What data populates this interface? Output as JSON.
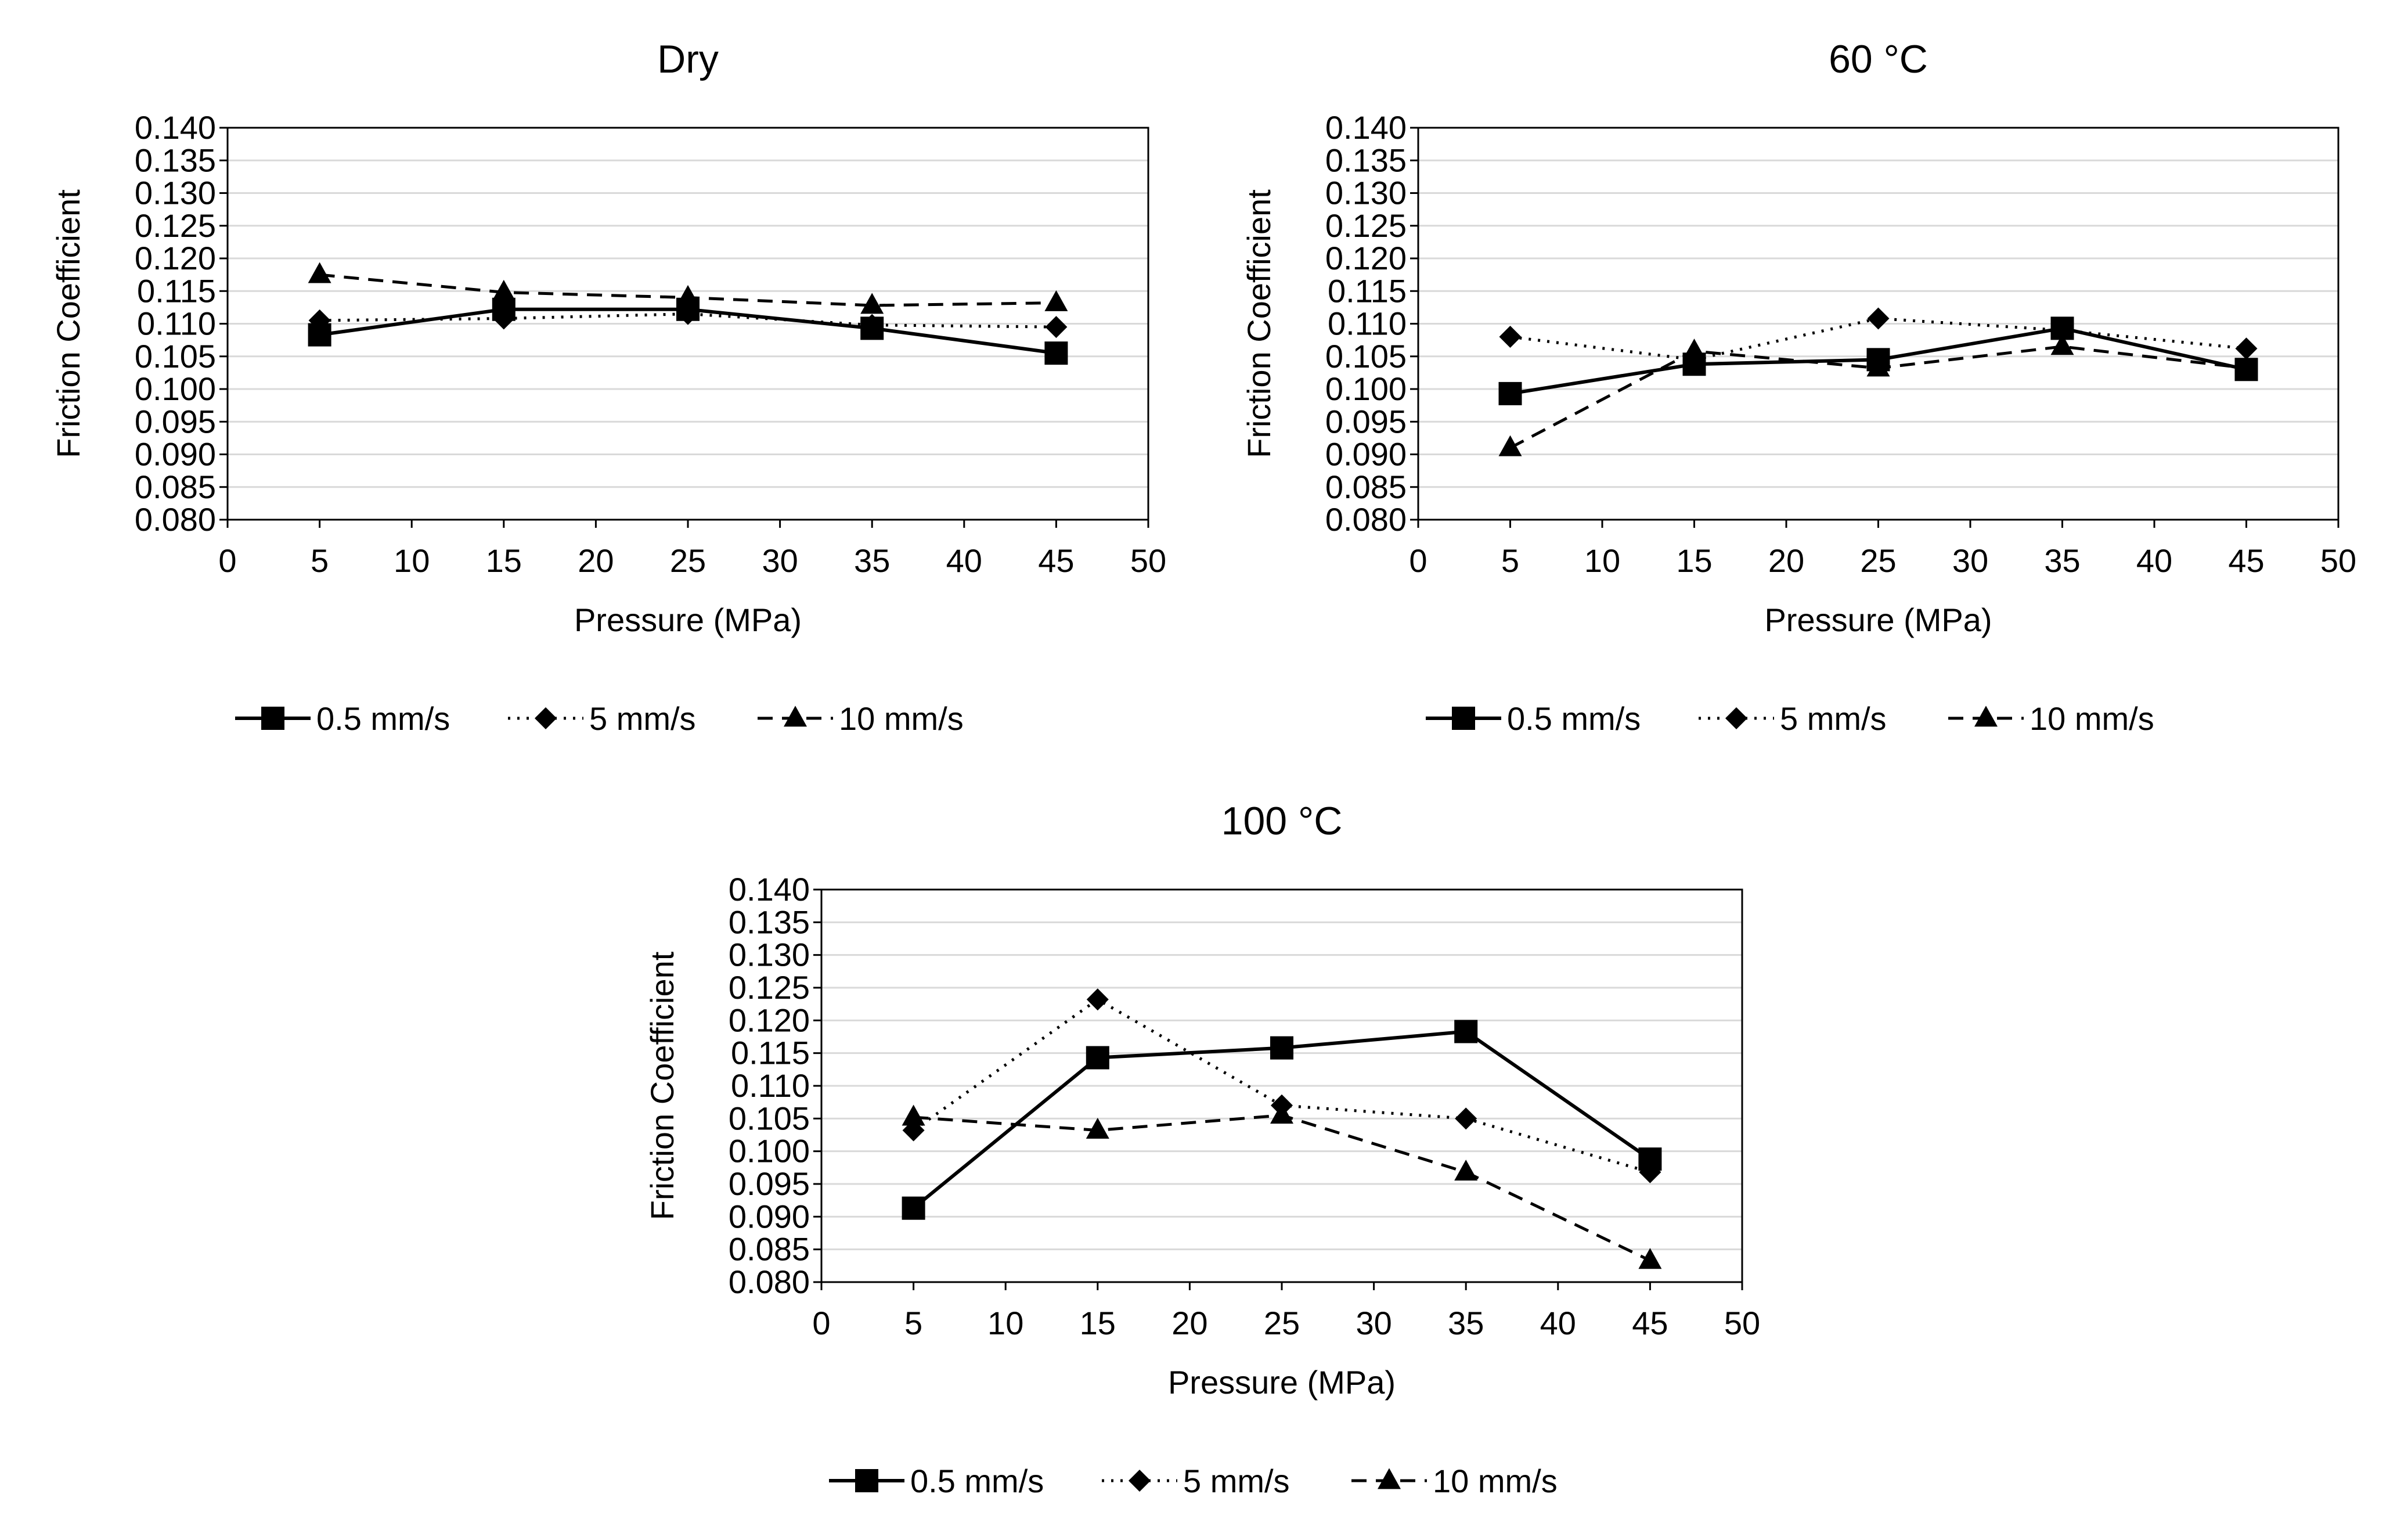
{
  "chart_data": [
    {
      "type": "line",
      "title": "Dry",
      "xlabel": "Pressure (MPa)",
      "ylabel": "Friction Coefficient",
      "xlim": [
        0,
        50
      ],
      "ylim": [
        0.08,
        0.14
      ],
      "x_ticks": [
        "0",
        "5",
        "10",
        "15",
        "20",
        "25",
        "30",
        "35",
        "40",
        "45",
        "50"
      ],
      "y_ticks": [
        "0.080",
        "0.085",
        "0.090",
        "0.095",
        "0.100",
        "0.105",
        "0.110",
        "0.115",
        "0.120",
        "0.125",
        "0.130",
        "0.135",
        "0.140"
      ],
      "grid": true,
      "legend": "bottom",
      "x": [
        5,
        15,
        25,
        35,
        45
      ],
      "series": [
        {
          "name": "0.5 mm/s",
          "marker": "square",
          "line": "solid",
          "values": [
            0.1083,
            0.1122,
            0.1122,
            0.1093,
            0.1055
          ]
        },
        {
          "name": "5 mm/s",
          "marker": "diamond",
          "line": "dotted",
          "values": [
            0.1105,
            0.1108,
            0.1115,
            0.1098,
            0.1095
          ]
        },
        {
          "name": "10 mm/s",
          "marker": "triangle",
          "line": "dashed",
          "values": [
            0.1175,
            0.1148,
            0.114,
            0.1128,
            0.1132
          ]
        }
      ]
    },
    {
      "type": "line",
      "title": "60 °C",
      "xlabel": "Pressure (MPa)",
      "ylabel": "Friction Coefficient",
      "xlim": [
        0,
        50
      ],
      "ylim": [
        0.08,
        0.14
      ],
      "x_ticks": [
        "0",
        "5",
        "10",
        "15",
        "20",
        "25",
        "30",
        "35",
        "40",
        "45",
        "50"
      ],
      "y_ticks": [
        "0.080",
        "0.085",
        "0.090",
        "0.095",
        "0.100",
        "0.105",
        "0.110",
        "0.115",
        "0.120",
        "0.125",
        "0.130",
        "0.135",
        "0.140"
      ],
      "grid": true,
      "legend": "bottom",
      "x": [
        5,
        15,
        25,
        35,
        45
      ],
      "series": [
        {
          "name": "0.5 mm/s",
          "marker": "square",
          "line": "solid",
          "values": [
            0.0993,
            0.1038,
            0.1045,
            0.1093,
            0.103
          ]
        },
        {
          "name": "5 mm/s",
          "marker": "diamond",
          "line": "dotted",
          "values": [
            0.108,
            0.1045,
            0.1108,
            0.109,
            0.1062
          ]
        },
        {
          "name": "10 mm/s",
          "marker": "triangle",
          "line": "dashed",
          "values": [
            0.091,
            0.1058,
            0.1032,
            0.1065,
            0.1032
          ]
        }
      ]
    },
    {
      "type": "line",
      "title": "100 °C",
      "xlabel": "Pressure (MPa)",
      "ylabel": "Friction Coefficient",
      "xlim": [
        0,
        50
      ],
      "ylim": [
        0.08,
        0.14
      ],
      "x_ticks": [
        "0",
        "5",
        "10",
        "15",
        "20",
        "25",
        "30",
        "35",
        "40",
        "45",
        "50"
      ],
      "y_ticks": [
        "0.080",
        "0.085",
        "0.090",
        "0.095",
        "0.100",
        "0.105",
        "0.110",
        "0.115",
        "0.120",
        "0.125",
        "0.130",
        "0.135",
        "0.140"
      ],
      "grid": true,
      "legend": "bottom",
      "x": [
        5,
        15,
        25,
        35,
        45
      ],
      "series": [
        {
          "name": "0.5 mm/s",
          "marker": "square",
          "line": "solid",
          "values": [
            0.0913,
            0.1143,
            0.1158,
            0.1183,
            0.0988
          ]
        },
        {
          "name": "5 mm/s",
          "marker": "diamond",
          "line": "dotted",
          "values": [
            0.1032,
            0.1232,
            0.107,
            0.105,
            0.0968
          ]
        },
        {
          "name": "10 mm/s",
          "marker": "triangle",
          "line": "dashed",
          "values": [
            0.1052,
            0.1032,
            0.1055,
            0.0968,
            0.0833
          ]
        }
      ]
    }
  ]
}
